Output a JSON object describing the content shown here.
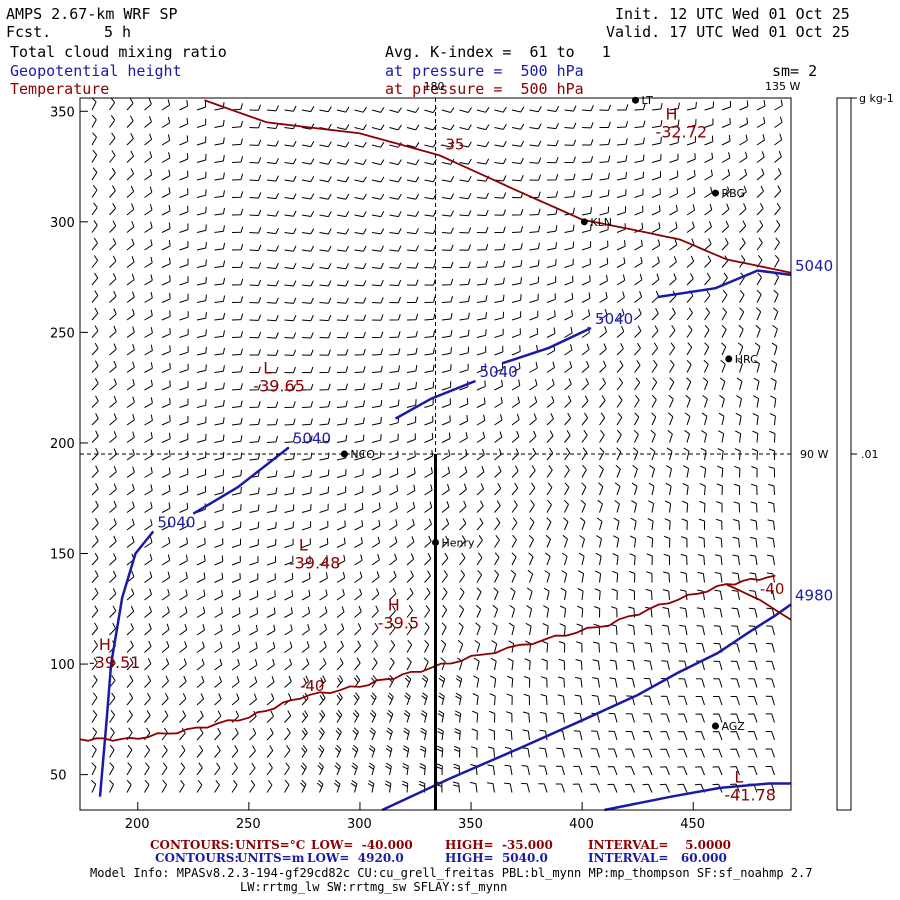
{
  "header": {
    "model": "AMPS 2.67-km WRF SP",
    "fcst_label": "Fcst.",
    "fcst_value": "5 h",
    "init": "Init. 12 UTC Wed 01 Oct 25",
    "valid": "Valid. 17 UTC Wed 01 Oct 25",
    "field1": "Total cloud mixing ratio",
    "field2": "Geopotential height",
    "field3": "Temperature",
    "avg": "Avg. K-index =  61 to   1",
    "press1": "at pressure =  500 hPa",
    "press2": "at pressure =  500 hPa",
    "sm": "sm= 2"
  },
  "colors": {
    "height": "#1a1aa6",
    "temperature": "#8b0000",
    "barbs": "#000000",
    "stations": "#000000"
  },
  "chart_data": {
    "type": "contour-map",
    "x_ticks": [
      200,
      250,
      300,
      350,
      400,
      450
    ],
    "y_ticks": [
      50,
      100,
      150,
      200,
      250,
      300,
      350
    ],
    "xlim": [
      174,
      494
    ],
    "ylim": [
      34,
      356
    ],
    "crosshair": {
      "x": 334,
      "y": 195
    },
    "crosshair_labels": {
      "top": "180",
      "top_right": "135 W",
      "right": "90 W"
    },
    "colorbar": {
      "unit": "g kg-1",
      "label": ".01"
    },
    "height_contours": [
      {
        "label": "5040",
        "points": [
          [
            183,
            40
          ],
          [
            186,
            75
          ],
          [
            188,
            100
          ],
          [
            193,
            130
          ],
          [
            199,
            150
          ],
          [
            207,
            160
          ]
        ]
      },
      {
        "label": "5040",
        "points": [
          [
            225,
            168
          ],
          [
            245,
            180
          ],
          [
            268,
            198
          ]
        ]
      },
      {
        "label": "5040",
        "points": [
          [
            316,
            211
          ],
          [
            332,
            220
          ],
          [
            352,
            228
          ]
        ]
      },
      {
        "label": "5040",
        "points": [
          [
            364,
            236
          ],
          [
            385,
            243
          ],
          [
            404,
            252
          ]
        ]
      },
      {
        "label": "5040",
        "points": [
          [
            434,
            266
          ],
          [
            460,
            270
          ],
          [
            479,
            278
          ],
          [
            494,
            276
          ]
        ]
      },
      {
        "label": "4980",
        "points": [
          [
            310,
            34
          ],
          [
            340,
            48
          ],
          [
            372,
            62
          ],
          [
            401,
            75
          ],
          [
            425,
            86
          ],
          [
            443,
            96
          ],
          [
            461,
            105
          ],
          [
            476,
            115
          ],
          [
            487,
            122
          ],
          [
            494,
            127
          ]
        ]
      },
      {
        "label": "",
        "points": [
          [
            410,
            34
          ],
          [
            440,
            40
          ],
          [
            462,
            44
          ],
          [
            484,
            46
          ],
          [
            494,
            46
          ]
        ]
      }
    ],
    "temperature_contours": [
      {
        "label": "-35",
        "points": [
          [
            230,
            355
          ],
          [
            258,
            345
          ],
          [
            300,
            340
          ],
          [
            336,
            330
          ],
          [
            371,
            314
          ],
          [
            400,
            301
          ],
          [
            425,
            296
          ],
          [
            444,
            292
          ],
          [
            465,
            283
          ],
          [
            494,
            277
          ]
        ]
      },
      {
        "label": "-40",
        "points": [
          [
            174,
            66
          ],
          [
            196,
            66
          ],
          [
            222,
            70
          ],
          [
            250,
            76
          ],
          [
            273,
            85
          ],
          [
            300,
            90
          ],
          [
            323,
            96
          ],
          [
            350,
            103
          ],
          [
            383,
            111
          ],
          [
            412,
            118
          ],
          [
            439,
            128
          ],
          [
            465,
            136
          ],
          [
            487,
            140
          ]
        ]
      },
      {
        "label": "-40",
        "points": [
          [
            465,
            136
          ],
          [
            480,
            129
          ],
          [
            494,
            120
          ]
        ]
      }
    ],
    "extrema": [
      {
        "type": "H",
        "value": "-32.72",
        "label_pos": [
          433,
          340
        ]
      },
      {
        "type": "L",
        "value": "-39.65",
        "label_pos": [
          252,
          225
        ]
      },
      {
        "type": "L",
        "value": "-39.48",
        "label_pos": [
          268,
          145
        ]
      },
      {
        "type": "H",
        "value": "-39.5",
        "label_pos": [
          308,
          118
        ]
      },
      {
        "type": "H",
        "value": "-39.51",
        "label_pos": [
          178,
          100
        ]
      },
      {
        "type": "L",
        "value": "-41.78",
        "label_pos": [
          464,
          40
        ]
      }
    ],
    "stations": [
      {
        "name": "LT",
        "x": 424,
        "y": 355
      },
      {
        "name": "RBG",
        "x": 460,
        "y": 313
      },
      {
        "name": "KLN",
        "x": 401,
        "y": 300
      },
      {
        "name": "HRC",
        "x": 466,
        "y": 238
      },
      {
        "name": "NCO",
        "x": 293,
        "y": 195
      },
      {
        "name": "Henry",
        "x": 334,
        "y": 155
      },
      {
        "name": "AGZ",
        "x": 460,
        "y": 72
      }
    ]
  },
  "footer": {
    "line1_contours": "CONTOURS:",
    "line1_units": "UNITS=°C",
    "line1_low": "LOW=  -40.000",
    "line1_high": "HIGH=  -35.000",
    "line1_int": "INTERVAL=    5.0000",
    "line2_contours": "CONTOURS:",
    "line2_units": "UNITS=m",
    "line2_low": "LOW=  4920.0",
    "line2_high": "HIGH=  5040.0",
    "line2_int": "INTERVAL=   60.000",
    "model_info": "Model Info: MPASv8.2.3-194-gf29cd82c CU:cu_grell_freitas PBL:bl_mynn MP:mp_thompson SF:sf_noahmp 2.7",
    "model_info2": "LW:rrtmg_lw SW:rrtmg_sw SFLAY:sf_mynn"
  }
}
